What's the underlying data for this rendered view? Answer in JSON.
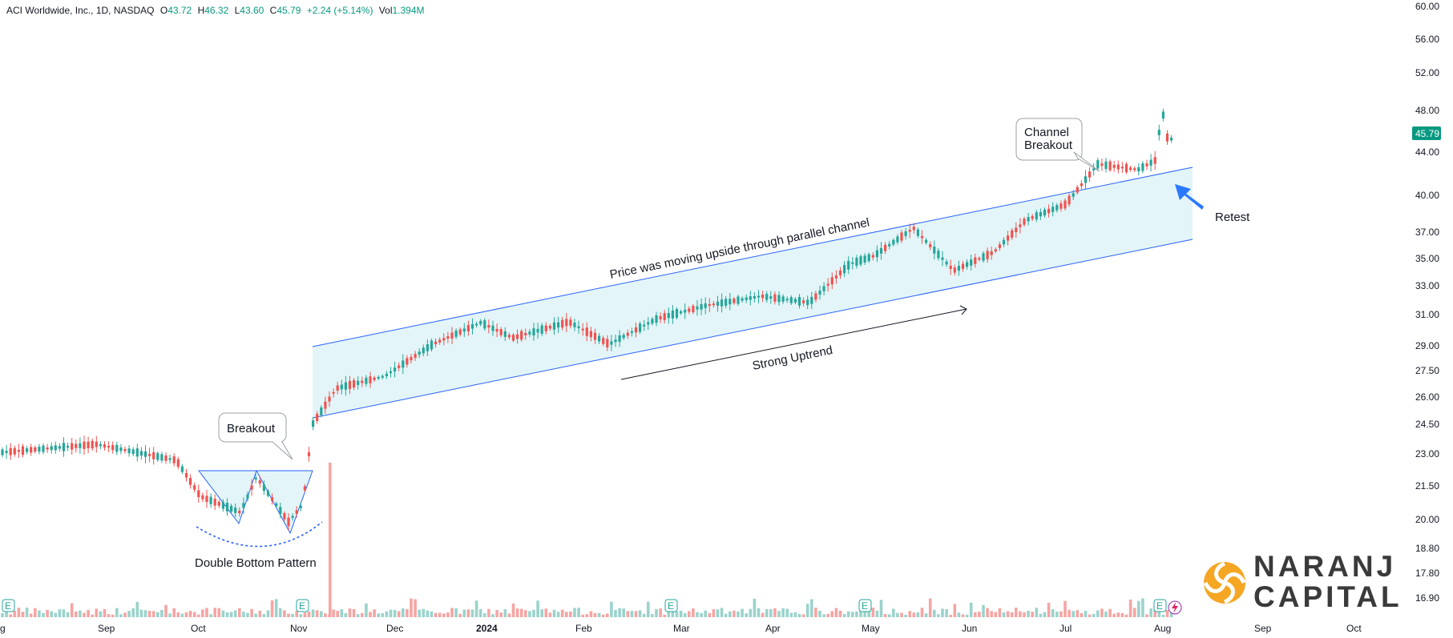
{
  "header": {
    "symbol_title": "ACI Worldwide, Inc., 1D, NASDAQ",
    "o_label": "O",
    "o_value": "43.72",
    "h_label": "H",
    "h_value": "46.32",
    "l_label": "L",
    "l_value": "43.60",
    "c_label": "C",
    "c_value": "45.79",
    "change": "+2.24 (+5.14%)",
    "vol_label": "Vol",
    "vol_value": "1.394M"
  },
  "price_axis": {
    "ticks": [
      "60.00",
      "56.00",
      "52.00",
      "48.00",
      "44.00",
      "40.00",
      "37.00",
      "35.00",
      "33.00",
      "31.00",
      "29.00",
      "27.50",
      "26.00",
      "24.50",
      "23.00",
      "21.50",
      "20.00",
      "18.80",
      "17.80",
      "16.90"
    ],
    "last_price_label": "45.79"
  },
  "time_axis": {
    "ticks": [
      "g",
      "Sep",
      "Oct",
      "Nov",
      "Dec",
      "2024",
      "Feb",
      "Mar",
      "Apr",
      "May",
      "Jun",
      "Jul",
      "Aug",
      "Sep",
      "Oct"
    ]
  },
  "annotations": {
    "breakout": "Breakout",
    "double_bottom": "Double Bottom Pattern",
    "channel_text": "Price was moving upside through parallel channel",
    "strong_uptrend": "Strong Uptrend",
    "channel_breakout_line1": "Channel",
    "channel_breakout_line2": "Breakout",
    "retest": "Retest"
  },
  "earnings_markers": [
    "E",
    "E",
    "E",
    "E",
    "E"
  ],
  "logo": {
    "line1": "NARANJ",
    "line2": "CAPITAL"
  },
  "colors": {
    "up": "#26a69a",
    "down": "#ef5350",
    "channel": "#2962ff",
    "channel_fill": "#e3f5f8",
    "label_bg": "#089981",
    "retest_arrow": "#2979ff",
    "logo_orange": "#f5a623"
  },
  "chart_data": {
    "type": "candlestick",
    "scale": "log",
    "ylim": [
      16.9,
      60.0
    ],
    "grid": false,
    "last_close": 45.79,
    "closes_by_month": [
      {
        "month": "Aug 2023",
        "close": 23.9
      },
      {
        "month": "Sep 2023",
        "close": 23.4
      },
      {
        "month": "Oct 2023",
        "close": 21.0
      },
      {
        "month": "Nov 2023",
        "close": 25.9
      },
      {
        "month": "Dec 2023",
        "close": 30.2
      },
      {
        "month": "Jan 2024",
        "close": 30.4
      },
      {
        "month": "Feb 2024",
        "close": 31.8
      },
      {
        "month": "Mar 2024",
        "close": 32.6
      },
      {
        "month": "Apr 2024",
        "close": 34.2
      },
      {
        "month": "May 2024",
        "close": 36.8
      },
      {
        "month": "Jun 2024",
        "close": 35.5
      },
      {
        "month": "Jul 2024",
        "close": 42.6
      },
      {
        "month": "Aug 2024",
        "close": 45.79
      }
    ]
  }
}
